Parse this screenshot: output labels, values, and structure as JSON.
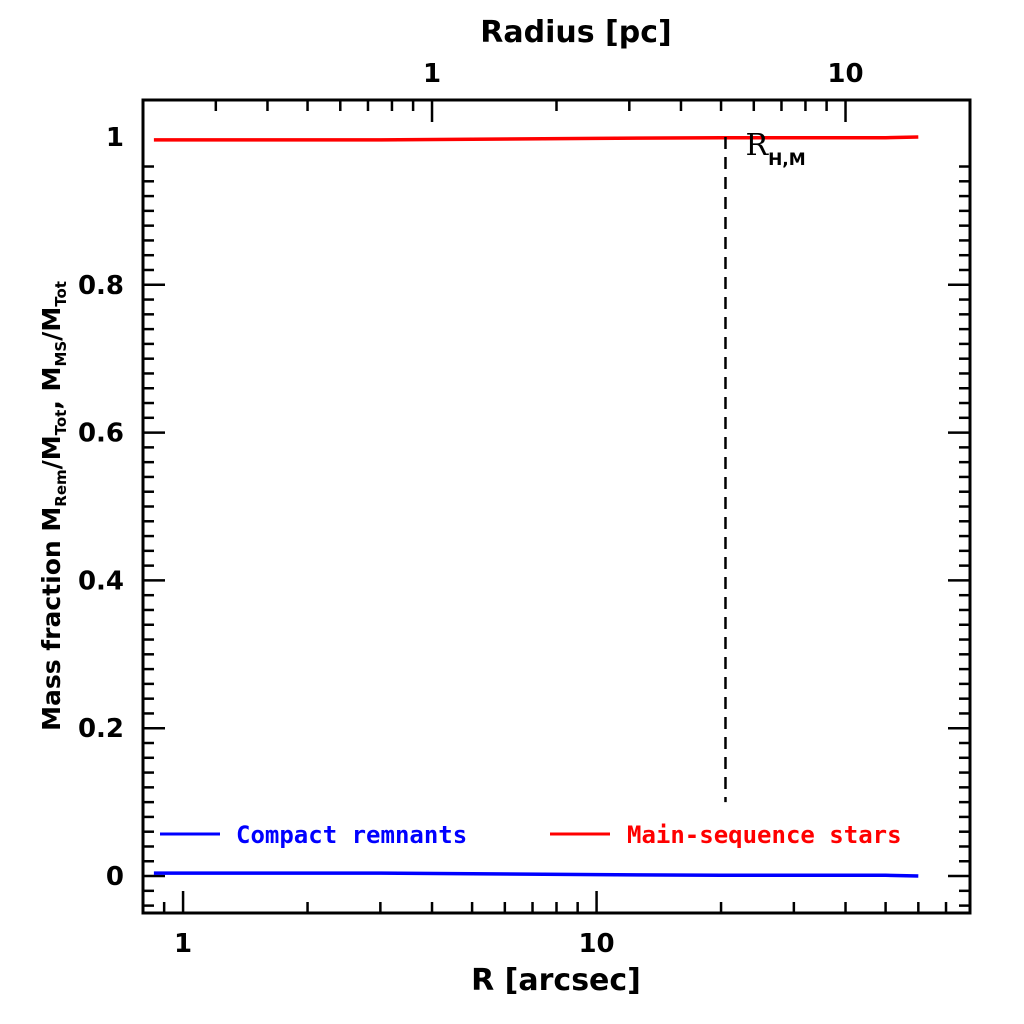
{
  "chart_data": {
    "type": "line",
    "title": "",
    "xlabel": "R [arcsec]",
    "x2label": "Radius [pc]",
    "ylabel_parts": [
      "Mass fraction  M",
      "Rem",
      "/M",
      "Tot",
      ", M",
      "MS",
      "/M",
      "Tot"
    ],
    "xscale": "log",
    "xlim": [
      0.8,
      80
    ],
    "ylim": [
      -0.05,
      1.05
    ],
    "x_ticks": [
      {
        "value": 1,
        "label": "1"
      },
      {
        "value": 10,
        "label": "10"
      }
    ],
    "x2_ticks": [
      {
        "value": 1,
        "label": "1"
      },
      {
        "value": 10,
        "label": "10"
      }
    ],
    "x2_per_x": 0.25,
    "y_ticks": [
      {
        "value": 0,
        "label": "0"
      },
      {
        "value": 0.2,
        "label": "0.2"
      },
      {
        "value": 0.4,
        "label": "0.4"
      },
      {
        "value": 0.6,
        "label": "0.6"
      },
      {
        "value": 0.8,
        "label": "0.8"
      },
      {
        "value": 1,
        "label": "1"
      }
    ],
    "series": [
      {
        "name": "Compact remnants",
        "color": "#0000ff",
        "x": [
          0.85,
          1,
          2,
          3,
          5,
          10,
          20,
          30,
          40,
          50,
          60
        ],
        "y": [
          0.004,
          0.004,
          0.004,
          0.004,
          0.003,
          0.002,
          0.001,
          0.001,
          0.001,
          0.001,
          0.0
        ]
      },
      {
        "name": "Main-sequence stars",
        "color": "#ff0000",
        "x": [
          0.85,
          1,
          2,
          3,
          5,
          10,
          20,
          30,
          40,
          50,
          60
        ],
        "y": [
          0.996,
          0.996,
          0.996,
          0.996,
          0.997,
          0.998,
          0.999,
          0.999,
          0.999,
          0.999,
          1.0
        ]
      }
    ],
    "vline": {
      "x": 20.5,
      "label": "R",
      "label_sub": "H,M",
      "style": "dashed"
    },
    "legend": {
      "position": "bottom"
    },
    "grid": false
  }
}
